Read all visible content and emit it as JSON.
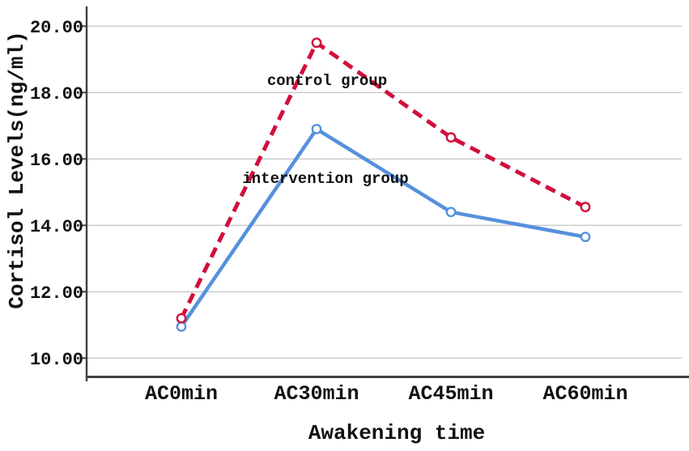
{
  "chart_data": {
    "type": "line",
    "title": "",
    "xlabel": "Awakening time",
    "ylabel": "Cortisol Levels(ng/ml)",
    "categories": [
      "AC0min",
      "AC30min",
      "AC45min",
      "AC60min"
    ],
    "y_ticks": [
      {
        "label": "10.00",
        "value": 10
      },
      {
        "label": "12.00",
        "value": 12
      },
      {
        "label": "14.00",
        "value": 14
      },
      {
        "label": "16.00",
        "value": 16
      },
      {
        "label": "18.00",
        "value": 18
      },
      {
        "label": "20.00",
        "value": 20
      }
    ],
    "ylim": [
      10,
      20.6
    ],
    "grid": true,
    "legend_position": "inline-labels-on-chart",
    "series": [
      {
        "name": "control group",
        "values": [
          11.2,
          19.5,
          16.65,
          14.55
        ],
        "line_style": "dashed",
        "marker": "open-circle",
        "color": "#d10f3c",
        "label_color": "#c8102e"
      },
      {
        "name": "intervention group",
        "values": [
          10.95,
          16.9,
          14.4,
          13.65
        ],
        "line_style": "solid",
        "marker": "open-circle",
        "color": "#5591dc",
        "label_color": "#283c96"
      }
    ]
  },
  "colors": {
    "background": "#ffffff",
    "gridline": "#c9c9c9",
    "axis": "#404040",
    "tick_text": "#111111"
  }
}
